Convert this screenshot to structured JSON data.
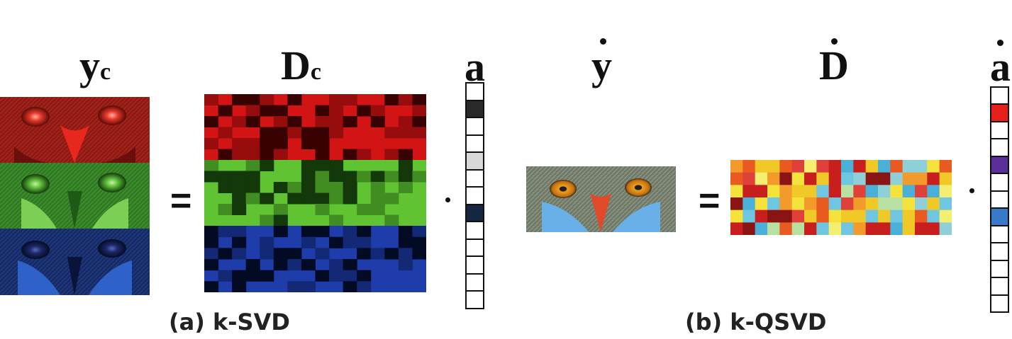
{
  "panel_a": {
    "caption": "(a) k-SVD",
    "label_y": "y",
    "label_y_sub": "c",
    "label_D": "D",
    "label_D_sub": "c",
    "label_a": "a",
    "equals": "=",
    "vector_cells": [
      "#ffffff",
      "#2a2a2a",
      "#ffffff",
      "#ffffff",
      "#d9d9d9",
      "#ffffff",
      "#ffffff",
      "#142640",
      "#ffffff",
      "#ffffff",
      "#ffffff",
      "#ffffff",
      "#ffffff"
    ]
  },
  "panel_b": {
    "caption": "(b) k-QSVD",
    "label_y": "y",
    "label_D": "D",
    "label_a": "a",
    "equals": "=",
    "vector_cells": [
      "#ffffff",
      "#e8201c",
      "#ffffff",
      "#ffffff",
      "#5b2f9a",
      "#ffffff",
      "#ffffff",
      "#3a78c8",
      "#ffffff",
      "#ffffff",
      "#ffffff",
      "#ffffff",
      "#ffffff"
    ]
  },
  "colors": {
    "red_channel": "#c0201a",
    "green_channel": "#3f9e2a",
    "blue_channel": "#1a3a8a",
    "ink": "#111111"
  }
}
